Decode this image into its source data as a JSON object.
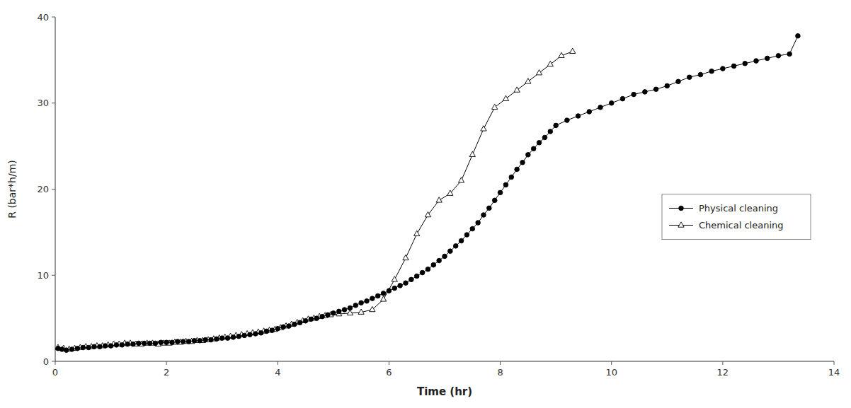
{
  "chart_data": {
    "type": "line",
    "xlabel": "Time (hr)",
    "ylabel": "R (bar*h/m)",
    "xlim": [
      0,
      14
    ],
    "ylim": [
      0,
      40
    ],
    "xticks": [
      0,
      2,
      4,
      6,
      8,
      10,
      12,
      14
    ],
    "yticks": [
      0,
      10,
      20,
      30,
      40
    ],
    "grid": false,
    "legend": "right",
    "series": [
      {
        "name": "Physical cleaning",
        "color": "#000000",
        "marker": "circle",
        "line_style": "solid",
        "x": [
          0.05,
          0.12,
          0.2,
          0.3,
          0.4,
          0.5,
          0.6,
          0.7,
          0.8,
          0.9,
          1.0,
          1.1,
          1.2,
          1.3,
          1.4,
          1.5,
          1.6,
          1.7,
          1.8,
          1.9,
          2.0,
          2.1,
          2.2,
          2.3,
          2.4,
          2.5,
          2.6,
          2.7,
          2.8,
          2.9,
          3.0,
          3.1,
          3.2,
          3.3,
          3.4,
          3.5,
          3.6,
          3.7,
          3.8,
          3.9,
          4.0,
          4.1,
          4.2,
          4.3,
          4.4,
          4.5,
          4.6,
          4.7,
          4.8,
          4.9,
          5.0,
          5.1,
          5.2,
          5.3,
          5.4,
          5.5,
          5.6,
          5.7,
          5.8,
          5.9,
          6.0,
          6.1,
          6.2,
          6.3,
          6.4,
          6.5,
          6.6,
          6.7,
          6.8,
          6.9,
          7.0,
          7.1,
          7.2,
          7.3,
          7.4,
          7.5,
          7.6,
          7.7,
          7.8,
          7.9,
          8.0,
          8.1,
          8.2,
          8.3,
          8.4,
          8.5,
          8.6,
          8.7,
          8.8,
          8.9,
          9.0,
          9.2,
          9.4,
          9.6,
          9.8,
          10.0,
          10.2,
          10.4,
          10.6,
          10.8,
          11.0,
          11.2,
          11.4,
          11.6,
          11.8,
          12.0,
          12.2,
          12.4,
          12.6,
          12.8,
          13.0,
          13.2,
          13.35
        ],
        "values": [
          1.5,
          1.4,
          1.3,
          1.4,
          1.5,
          1.6,
          1.6,
          1.7,
          1.7,
          1.8,
          1.8,
          1.9,
          1.9,
          2.0,
          2.0,
          2.1,
          2.1,
          2.1,
          2.1,
          2.2,
          2.2,
          2.2,
          2.3,
          2.3,
          2.3,
          2.4,
          2.4,
          2.5,
          2.5,
          2.6,
          2.7,
          2.7,
          2.8,
          2.9,
          3.0,
          3.1,
          3.2,
          3.3,
          3.5,
          3.6,
          3.8,
          4.0,
          4.1,
          4.3,
          4.5,
          4.7,
          4.9,
          5.0,
          5.2,
          5.4,
          5.6,
          5.8,
          6.0,
          6.2,
          6.5,
          6.8,
          7.0,
          7.3,
          7.6,
          7.9,
          8.2,
          8.5,
          8.8,
          9.1,
          9.5,
          9.9,
          10.3,
          10.7,
          11.2,
          11.7,
          12.2,
          12.8,
          13.4,
          14.0,
          14.7,
          15.4,
          16.1,
          17.0,
          17.8,
          18.7,
          19.6,
          20.5,
          21.4,
          22.3,
          23.1,
          24.0,
          24.7,
          25.4,
          26.0,
          26.7,
          27.4,
          28.0,
          28.5,
          29.0,
          29.5,
          30.0,
          30.5,
          31.0,
          31.3,
          31.6,
          32.0,
          32.5,
          33.0,
          33.3,
          33.7,
          34.0,
          34.3,
          34.6,
          34.9,
          35.2,
          35.5,
          35.7,
          37.8
        ]
      },
      {
        "name": "Chemical cleaning",
        "color": "#000000",
        "marker": "triangle-open",
        "line_style": "solid",
        "x": [
          0.05,
          0.15,
          0.25,
          0.35,
          0.45,
          0.55,
          0.65,
          0.75,
          0.85,
          0.95,
          1.05,
          1.15,
          1.25,
          1.35,
          1.45,
          1.55,
          1.65,
          1.75,
          1.85,
          1.95,
          2.05,
          2.15,
          2.25,
          2.35,
          2.45,
          2.55,
          2.65,
          2.75,
          2.85,
          2.95,
          3.05,
          3.15,
          3.25,
          3.35,
          3.45,
          3.55,
          3.65,
          3.75,
          3.85,
          3.95,
          4.05,
          4.15,
          4.25,
          4.35,
          4.45,
          4.55,
          4.65,
          4.75,
          4.85,
          4.95,
          5.1,
          5.3,
          5.5,
          5.7,
          5.9,
          6.1,
          6.3,
          6.5,
          6.7,
          6.9,
          7.1,
          7.3,
          7.5,
          7.7,
          7.9,
          8.1,
          8.3,
          8.5,
          8.7,
          8.9,
          9.1,
          9.3
        ],
        "values": [
          1.6,
          1.5,
          1.4,
          1.5,
          1.6,
          1.7,
          1.7,
          1.8,
          1.8,
          1.9,
          2.0,
          2.0,
          2.1,
          2.1,
          2.0,
          2.0,
          2.1,
          2.1,
          2.0,
          2.1,
          2.1,
          2.2,
          2.2,
          2.3,
          2.3,
          2.4,
          2.4,
          2.5,
          2.6,
          2.7,
          2.8,
          2.9,
          3.0,
          3.1,
          3.2,
          3.3,
          3.4,
          3.5,
          3.6,
          3.7,
          3.9,
          4.1,
          4.3,
          4.5,
          4.7,
          4.9,
          5.0,
          5.2,
          5.3,
          5.4,
          5.5,
          5.6,
          5.7,
          6.0,
          7.2,
          9.5,
          12.0,
          14.8,
          17.0,
          18.7,
          19.5,
          21.0,
          24.0,
          27.0,
          29.5,
          30.5,
          31.5,
          32.5,
          33.5,
          34.5,
          35.5,
          36.0
        ]
      }
    ]
  }
}
